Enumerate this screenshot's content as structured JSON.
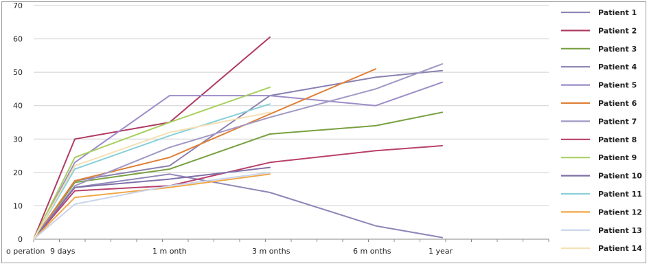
{
  "chart_data": {
    "type": "line",
    "title": "",
    "xlabel": "",
    "ylabel": "",
    "ylim": [
      0,
      70
    ],
    "yticks": [
      0,
      10,
      20,
      30,
      40,
      50,
      60,
      70
    ],
    "categories": [
      "o peration",
      "9 days",
      "1 m onth",
      "3 m onths",
      "6 m onths",
      "1 year"
    ],
    "grid": "horizontal",
    "legend": "right",
    "series": [
      {
        "name": "Patient 1",
        "color": "#8f86b8",
        "values": [
          0,
          15.5,
          19.5,
          14,
          4,
          0.5
        ]
      },
      {
        "name": "Patient 2",
        "color": "#b03a64",
        "values": [
          0,
          30,
          35,
          60.5,
          null,
          null
        ]
      },
      {
        "name": "Patient 3",
        "color": "#78a040",
        "values": [
          0,
          17,
          21,
          31.5,
          34,
          38
        ]
      },
      {
        "name": "Patient 4",
        "color": "#8a80b0",
        "values": [
          0,
          17.5,
          22,
          43,
          48.5,
          50.5
        ]
      },
      {
        "name": "Patient 5",
        "color": "#9c8cc8",
        "values": [
          0,
          23,
          43,
          43,
          40,
          47
        ]
      },
      {
        "name": "Patient 6",
        "color": "#e08038",
        "values": [
          0,
          17.5,
          24.5,
          37.5,
          51,
          null
        ]
      },
      {
        "name": "Patient 7",
        "color": "#a098c4",
        "values": [
          0,
          16,
          27.5,
          36.5,
          45,
          52.5
        ]
      },
      {
        "name": "Patient 8",
        "color": "#b8406c",
        "values": [
          0,
          14.5,
          16,
          23,
          26.5,
          28
        ]
      },
      {
        "name": "Patient 9",
        "color": "#a8d060",
        "values": [
          0,
          24.5,
          35,
          45.5,
          null,
          null
        ]
      },
      {
        "name": "Patient 10",
        "color": "#8070a8",
        "values": [
          0,
          15.5,
          18,
          21.5,
          null,
          null
        ]
      },
      {
        "name": "Patient 11",
        "color": "#88d0d8",
        "values": [
          0,
          21,
          31,
          40.5,
          null,
          null
        ]
      },
      {
        "name": "Patient 12",
        "color": "#f0a848",
        "values": [
          0,
          12.5,
          15.5,
          19.5,
          null,
          null
        ]
      },
      {
        "name": "Patient 13",
        "color": "#c8d4ec",
        "values": [
          0,
          10.5,
          16,
          20,
          null,
          null
        ]
      },
      {
        "name": "Patient 14",
        "color": "#f6e0b4",
        "values": [
          0,
          22,
          32,
          38,
          null,
          null
        ]
      }
    ]
  }
}
